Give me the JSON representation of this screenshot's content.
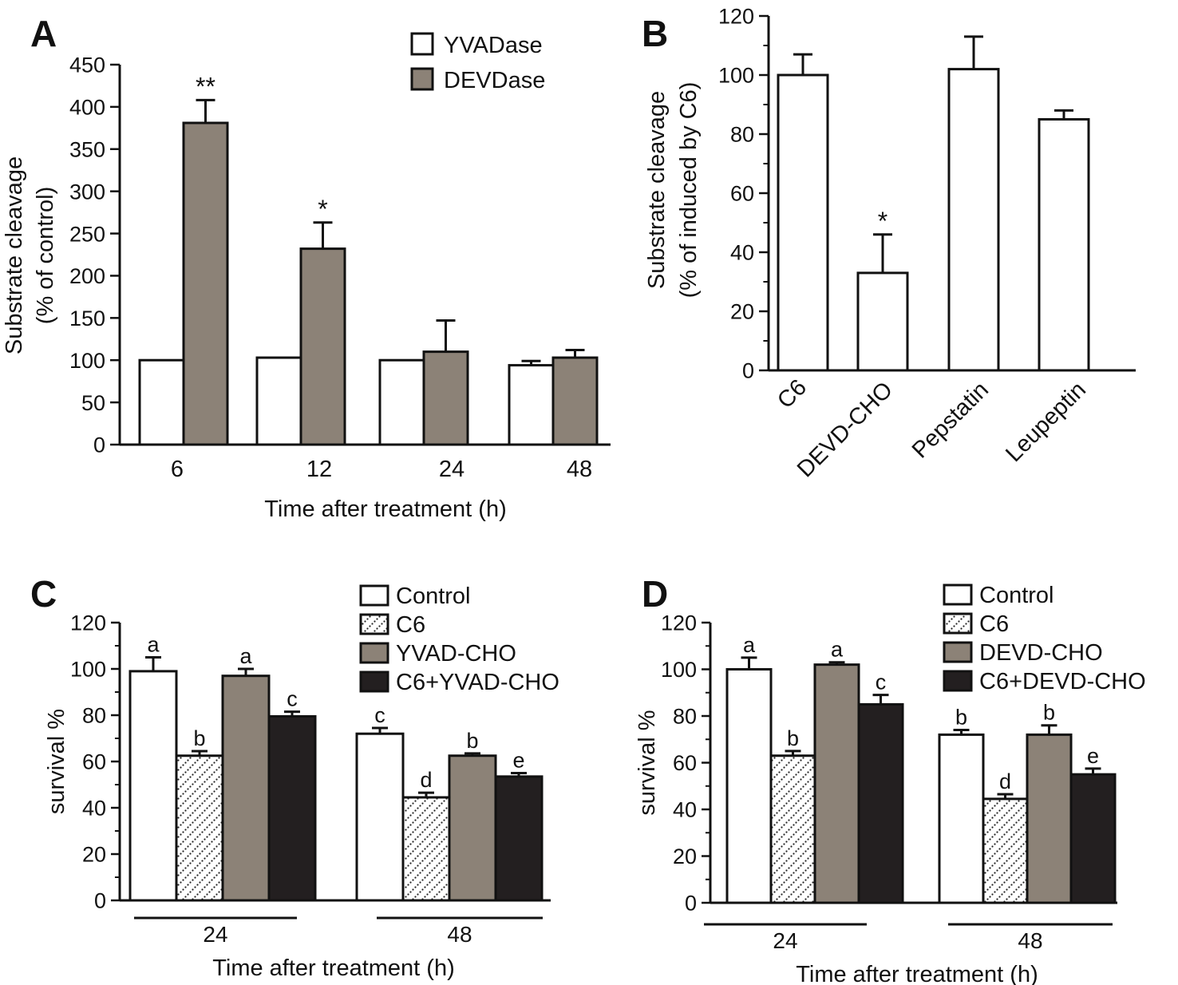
{
  "chart_data": [
    {
      "panel": "A",
      "type": "bar",
      "ylabel": "Substrate cleavage",
      "ylabel2": "(% of control)",
      "xlabel": "Time after treatment (h)",
      "ylim": [
        0,
        450
      ],
      "yticks": [
        0,
        50,
        100,
        150,
        200,
        250,
        300,
        350,
        400,
        450
      ],
      "categories": [
        "6",
        "12",
        "24",
        "48"
      ],
      "series": [
        {
          "name": "YVADase",
          "fill": "white",
          "values": [
            100,
            103,
            100,
            94
          ],
          "errors": [
            0,
            0,
            0,
            5
          ],
          "labels": [
            "",
            "",
            "",
            ""
          ]
        },
        {
          "name": "DEVDase",
          "fill": "gray",
          "values": [
            381,
            232,
            110,
            103
          ],
          "errors": [
            27,
            31,
            37,
            9
          ],
          "labels": [
            "**",
            "*",
            "",
            ""
          ]
        }
      ]
    },
    {
      "panel": "B",
      "type": "bar",
      "ylabel": "Substrate cleavage",
      "ylabel2": "(% of induced by C6)",
      "ylim": [
        0,
        120
      ],
      "yticks": [
        0,
        20,
        40,
        60,
        80,
        100,
        120
      ],
      "categories": [
        "C6",
        "DEVD-CHO",
        "Pepstatin",
        "Leupeptin"
      ],
      "series": [
        {
          "name": "Substrate cleavage",
          "fill": "white",
          "values": [
            100,
            33,
            102,
            85
          ],
          "errors": [
            7,
            13,
            11,
            3
          ],
          "labels": [
            "",
            "*",
            "",
            ""
          ]
        }
      ]
    },
    {
      "panel": "C",
      "type": "bar",
      "ylabel": "survival %",
      "xlabel": "Time after treatment (h)",
      "ylim": [
        0,
        120
      ],
      "yticks": [
        0,
        20,
        40,
        60,
        80,
        100,
        120
      ],
      "categories": [
        "24",
        "48"
      ],
      "series": [
        {
          "name": "Control",
          "fill": "white",
          "values": [
            99,
            72
          ],
          "errors": [
            6,
            2.5
          ],
          "labels": [
            "a",
            "c"
          ]
        },
        {
          "name": "C6",
          "fill": "dotted",
          "values": [
            62.5,
            44.5
          ],
          "errors": [
            2,
            2
          ],
          "labels": [
            "b",
            "d"
          ]
        },
        {
          "name": "YVAD-CHO",
          "fill": "gray",
          "values": [
            97,
            62.5
          ],
          "errors": [
            3,
            1
          ],
          "labels": [
            "a",
            "b"
          ]
        },
        {
          "name": "C6+YVAD-CHO",
          "fill": "black",
          "values": [
            79.5,
            53.5
          ],
          "errors": [
            2,
            1.5
          ],
          "labels": [
            "c",
            "e"
          ]
        }
      ]
    },
    {
      "panel": "D",
      "type": "bar",
      "ylabel": "survival %",
      "xlabel": "Time after treatment (h)",
      "ylim": [
        0,
        120
      ],
      "yticks": [
        0,
        20,
        40,
        60,
        80,
        100,
        120
      ],
      "categories": [
        "24",
        "48"
      ],
      "series": [
        {
          "name": "Control",
          "fill": "white",
          "values": [
            100,
            72
          ],
          "errors": [
            5,
            2
          ],
          "labels": [
            "a",
            "b"
          ]
        },
        {
          "name": "C6",
          "fill": "dotted",
          "values": [
            63,
            44.5
          ],
          "errors": [
            2,
            2
          ],
          "labels": [
            "b",
            "d"
          ]
        },
        {
          "name": "DEVD-CHO",
          "fill": "gray",
          "values": [
            102,
            72
          ],
          "errors": [
            1,
            4
          ],
          "labels": [
            "a",
            "b"
          ]
        },
        {
          "name": "C6+DEVD-CHO",
          "fill": "black",
          "values": [
            85,
            55
          ],
          "errors": [
            4,
            2.5
          ],
          "labels": [
            "c",
            "e"
          ]
        }
      ]
    }
  ],
  "colors": {
    "gray": "#8c8277",
    "black": "#231f20",
    "white": "#ffffff",
    "ink": "#111111"
  },
  "icons": {
    "legend-swatch": "square-swatch-icon"
  }
}
